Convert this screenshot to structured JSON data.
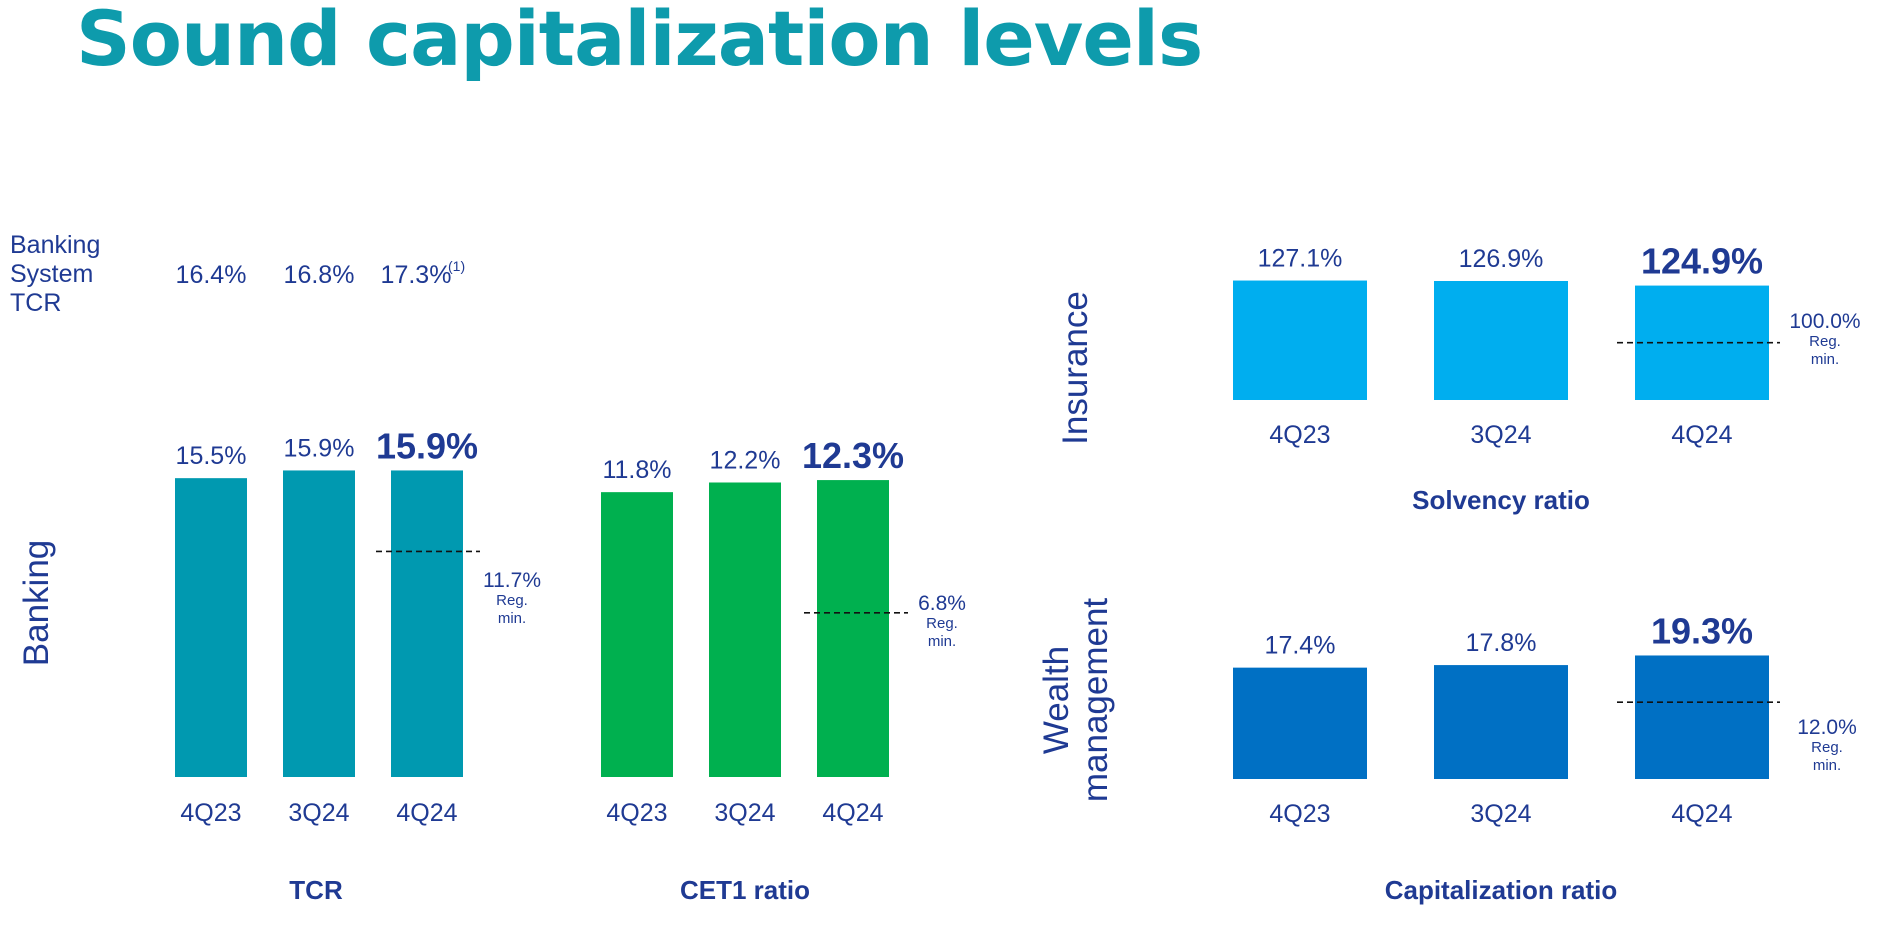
{
  "title": "Sound capitalization levels",
  "banking_system": {
    "label_lines": [
      "Banking",
      "System",
      "TCR"
    ],
    "values": [
      "16.4%",
      "16.8%",
      "17.3%"
    ],
    "footnote": "(1)"
  },
  "sections": {
    "banking": "Banking",
    "insurance": "Insurance",
    "wealth_lines": [
      "Wealth",
      "management"
    ]
  },
  "colors": {
    "tcr": "#0099b0",
    "cet1": "#00b04f",
    "solvency": "#00aeef",
    "capitalization": "#0070c4",
    "text": "#1f3a93",
    "title": "#0e9bac"
  },
  "chart_data": [
    {
      "type": "bar",
      "title": "TCR",
      "categories": [
        "4Q23",
        "3Q24",
        "4Q24"
      ],
      "values": [
        15.5,
        15.9,
        15.9
      ],
      "labels": [
        "15.5%",
        "15.9%",
        "15.9%"
      ],
      "reference_line": {
        "value": 11.7,
        "label": "11.7%",
        "note_lines": [
          "Reg.",
          "min."
        ]
      }
    },
    {
      "type": "bar",
      "title": "CET1 ratio",
      "categories": [
        "4Q23",
        "3Q24",
        "4Q24"
      ],
      "values": [
        11.8,
        12.2,
        12.3
      ],
      "labels": [
        "11.8%",
        "12.2%",
        "12.3%"
      ],
      "reference_line": {
        "value": 6.8,
        "label": "6.8%",
        "note_lines": [
          "Reg.",
          "min."
        ]
      }
    },
    {
      "type": "bar",
      "title": "Solvency ratio",
      "categories": [
        "4Q23",
        "3Q24",
        "4Q24"
      ],
      "values": [
        127.1,
        126.9,
        124.9
      ],
      "labels": [
        "127.1%",
        "126.9%",
        "124.9%"
      ],
      "reference_line": {
        "value": 100.0,
        "label": "100.0%",
        "note_lines": [
          "Reg.",
          "min."
        ]
      }
    },
    {
      "type": "bar",
      "title": "Capitalization ratio",
      "categories": [
        "4Q23",
        "3Q24",
        "4Q24"
      ],
      "values": [
        17.4,
        17.8,
        19.3
      ],
      "labels": [
        "17.4%",
        "17.8%",
        "19.3%"
      ],
      "reference_line": {
        "value": 12.0,
        "label": "12.0%",
        "note_lines": [
          "Reg.",
          "min."
        ]
      }
    }
  ]
}
